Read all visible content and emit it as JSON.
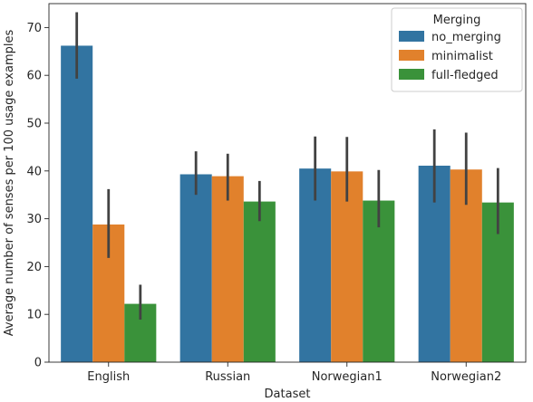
{
  "chart_data": {
    "type": "bar",
    "xlabel": "Dataset",
    "ylabel": "Average number of senses per 100 usage examples",
    "categories": [
      "English",
      "Russian",
      "Norwegian1",
      "Norwegian2"
    ],
    "ylim": [
      0,
      75
    ],
    "yticks": [
      0,
      10,
      20,
      30,
      40,
      50,
      60,
      70
    ],
    "grid": false,
    "legend": {
      "title": "Merging",
      "placement": "top-right"
    },
    "series": [
      {
        "name": "no_merging",
        "color": "#3274a1",
        "values": [
          66.2,
          39.3,
          40.5,
          41.1
        ],
        "ci_low": [
          59.3,
          35.0,
          33.8,
          33.4
        ],
        "ci_high": [
          73.2,
          44.1,
          47.2,
          48.7
        ]
      },
      {
        "name": "minimalist",
        "color": "#e1812c",
        "values": [
          28.8,
          38.9,
          39.9,
          40.3
        ],
        "ci_low": [
          21.8,
          33.8,
          33.6,
          32.9
        ],
        "ci_high": [
          36.2,
          43.6,
          47.1,
          48.0
        ]
      },
      {
        "name": "full-fledged",
        "color": "#3a923a",
        "values": [
          12.2,
          33.6,
          33.8,
          33.4
        ],
        "ci_low": [
          8.9,
          29.5,
          28.2,
          26.8
        ],
        "ci_high": [
          16.2,
          37.9,
          40.2,
          40.6
        ]
      }
    ],
    "errorbar_color": "#424242"
  }
}
